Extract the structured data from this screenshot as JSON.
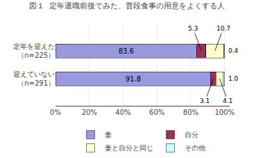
{
  "chart_data": {
    "type": "bar",
    "orientation": "horizontal",
    "stacked": true,
    "title": "図１  定年退職前後でみた、普段食事の用意をよくする人",
    "categories": [
      "迎えていない\n（n=291）",
      "定年を迎えた\n（n=225）"
    ],
    "series": [
      {
        "name": "妻",
        "color": "#9999dd",
        "values": [
          91.8,
          83.6
        ],
        "value_labels": [
          "91.8",
          "83.6"
        ]
      },
      {
        "name": "自分",
        "color": "#993355",
        "values": [
          3.1,
          5.3
        ],
        "value_labels": [
          "3.1",
          "5.3"
        ]
      },
      {
        "name": "妻と自分と同じ",
        "color": "#ffffcc",
        "values": [
          4.1,
          10.7
        ],
        "value_labels": [
          "4.1",
          "10.7"
        ]
      },
      {
        "name": "その他",
        "color": "#ccffff",
        "values": [
          1.0,
          0.4
        ],
        "value_labels": [
          "1.0",
          "0.4"
        ]
      }
    ],
    "xlim": [
      0,
      103
    ],
    "xticks": [
      {
        "value": 0,
        "label": "0%"
      },
      {
        "value": 20,
        "label": "20%"
      },
      {
        "value": 40,
        "label": "40%"
      },
      {
        "value": 60,
        "label": "60%"
      },
      {
        "value": 80,
        "label": "80%"
      },
      {
        "value": 100,
        "label": "100%"
      }
    ],
    "grid": true,
    "legend": "bottom",
    "data_labels": true
  }
}
